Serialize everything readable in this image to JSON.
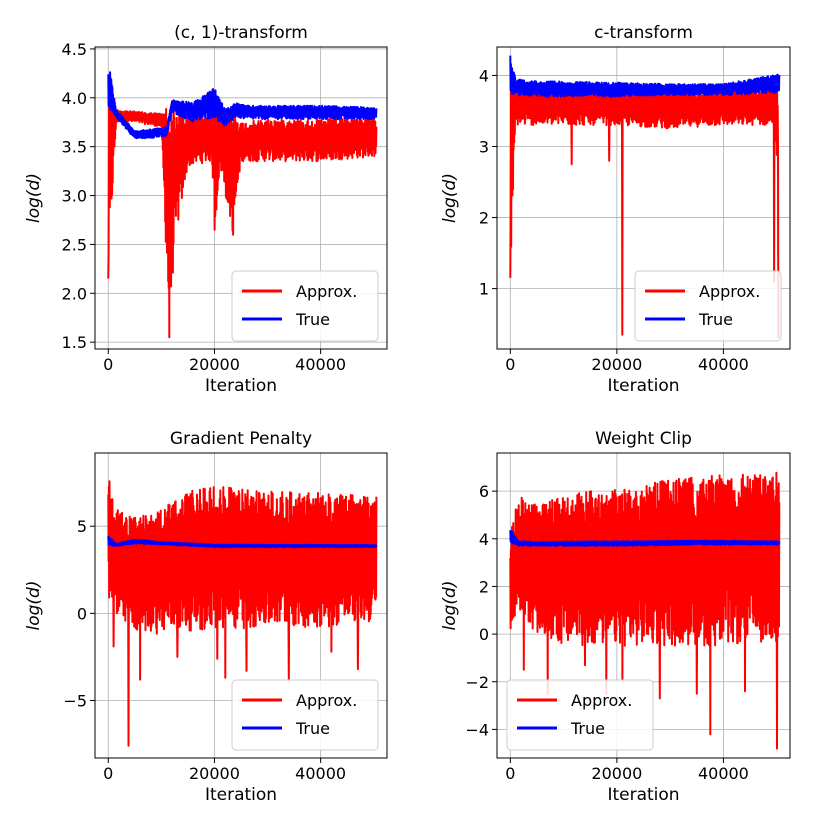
{
  "colors": {
    "approx": "#ff0000",
    "true": "#0000ff"
  },
  "chart_data": [
    {
      "type": "line",
      "title": "(c, 1)-transform",
      "xlabel": "Iteration",
      "ylabel": "log(d)",
      "xlim": [
        -2500,
        52500
      ],
      "ylim": [
        1.43,
        4.52
      ],
      "xticks": [
        0,
        20000,
        40000
      ],
      "xtick_labels": [
        "0",
        "20000",
        "40000"
      ],
      "yticks": [
        1.5,
        2.0,
        2.5,
        3.0,
        3.5,
        4.0,
        4.5
      ],
      "ytick_labels": [
        "1.5",
        "2.0",
        "2.5",
        "3.0",
        "3.5",
        "4.0",
        "4.5"
      ],
      "grid": true,
      "legend": {
        "position": "bottom-right",
        "entries": [
          "Approx.",
          "True"
        ]
      },
      "series": [
        {
          "name": "Approx.",
          "color": "#ff0000",
          "band": [
            [
              0,
              2.15,
              4.38
            ],
            [
              1500,
              3.75,
              3.88
            ],
            [
              5000,
              3.75,
              3.86
            ],
            [
              10000,
              3.7,
              3.84
            ],
            [
              11500,
              1.55,
              4.0
            ],
            [
              12500,
              2.5,
              3.9
            ],
            [
              15000,
              3.3,
              3.85
            ],
            [
              19500,
              3.35,
              3.88
            ],
            [
              20200,
              2.7,
              3.95
            ],
            [
              21000,
              3.3,
              3.9
            ],
            [
              23500,
              2.6,
              3.9
            ],
            [
              25000,
              3.35,
              3.75
            ],
            [
              30000,
              3.35,
              3.78
            ],
            [
              40000,
              3.35,
              3.78
            ],
            [
              50500,
              3.4,
              3.8
            ]
          ],
          "dips": [
            [
              0,
              2.15
            ],
            [
              11500,
              1.55
            ],
            [
              20000,
              2.65
            ],
            [
              23500,
              2.6
            ]
          ]
        },
        {
          "name": "True",
          "color": "#0000ff",
          "band": [
            [
              0,
              3.8,
              4.38
            ],
            [
              1500,
              3.8,
              3.88
            ],
            [
              5000,
              3.58,
              3.66
            ],
            [
              11000,
              3.6,
              3.7
            ],
            [
              12000,
              3.85,
              3.98
            ],
            [
              16000,
              3.75,
              3.95
            ],
            [
              20000,
              3.8,
              4.1
            ],
            [
              22000,
              3.7,
              3.88
            ],
            [
              24000,
              3.8,
              3.95
            ],
            [
              26000,
              3.78,
              3.92
            ],
            [
              40000,
              3.78,
              3.92
            ],
            [
              50500,
              3.78,
              3.9
            ]
          ]
        }
      ]
    },
    {
      "type": "line",
      "title": "c-transform",
      "xlabel": "Iteration",
      "ylabel": "log(d)",
      "xlim": [
        -2500,
        52500
      ],
      "ylim": [
        0.15,
        4.4
      ],
      "xticks": [
        0,
        20000,
        40000
      ],
      "xtick_labels": [
        "0",
        "20000",
        "40000"
      ],
      "yticks": [
        1,
        2,
        3,
        4
      ],
      "ytick_labels": [
        "1",
        "2",
        "3",
        "4"
      ],
      "grid": true,
      "legend": {
        "position": "bottom-right",
        "entries": [
          "Approx.",
          "True"
        ]
      },
      "series": [
        {
          "name": "Approx.",
          "color": "#ff0000",
          "band": [
            [
              0,
              1.15,
              4.1
            ],
            [
              1000,
              3.3,
              3.85
            ],
            [
              10000,
              3.3,
              3.85
            ],
            [
              20000,
              3.3,
              3.8
            ],
            [
              30000,
              3.25,
              3.82
            ],
            [
              40000,
              3.3,
              3.8
            ],
            [
              49500,
              3.3,
              3.82
            ],
            [
              50300,
              2.5,
              3.85
            ]
          ],
          "dips": [
            [
              0,
              1.15
            ],
            [
              11500,
              2.75
            ],
            [
              18500,
              2.8
            ],
            [
              21000,
              0.35
            ],
            [
              49500,
              1.1
            ],
            [
              50300,
              0.3
            ]
          ]
        },
        {
          "name": "True",
          "color": "#0000ff",
          "band": [
            [
              0,
              3.75,
              4.28
            ],
            [
              1000,
              3.72,
              3.95
            ],
            [
              5000,
              3.7,
              3.92
            ],
            [
              20000,
              3.7,
              3.9
            ],
            [
              30000,
              3.72,
              3.88
            ],
            [
              40000,
              3.72,
              3.88
            ],
            [
              50500,
              3.75,
              4.02
            ]
          ]
        }
      ]
    },
    {
      "type": "line",
      "title": "Gradient Penalty",
      "xlabel": "Iteration",
      "ylabel": "log(d)",
      "xlim": [
        -2500,
        52500
      ],
      "ylim": [
        -8.3,
        9.2
      ],
      "xticks": [
        0,
        20000,
        40000
      ],
      "xtick_labels": [
        "0",
        "20000",
        "40000"
      ],
      "yticks": [
        -5,
        0,
        5
      ],
      "ytick_labels": [
        "−5",
        "0",
        "5"
      ],
      "grid": true,
      "legend": {
        "position": "bottom-right",
        "entries": [
          "Approx.",
          "True"
        ]
      },
      "series": [
        {
          "name": "Approx.",
          "color": "#ff0000",
          "band": [
            [
              0,
              1.0,
              8.5
            ],
            [
              1500,
              -0.5,
              6.0
            ],
            [
              5000,
              -1.0,
              5.5
            ],
            [
              10000,
              -1.2,
              6.0
            ],
            [
              15000,
              -1.0,
              7.0
            ],
            [
              20000,
              -1.0,
              7.3
            ],
            [
              30000,
              -0.8,
              7.0
            ],
            [
              40000,
              -0.8,
              6.9
            ],
            [
              50500,
              -0.5,
              6.8
            ]
          ],
          "dips": [
            [
              1000,
              -1.9
            ],
            [
              3800,
              -7.6
            ],
            [
              6000,
              -3.8
            ],
            [
              13000,
              -2.5
            ],
            [
              20500,
              -2.6
            ],
            [
              22000,
              -3.7
            ],
            [
              26000,
              -3.3
            ],
            [
              34000,
              -3.8
            ],
            [
              42000,
              -2.2
            ],
            [
              47000,
              -3.2
            ]
          ]
        },
        {
          "name": "True",
          "color": "#0000ff",
          "band": [
            [
              0,
              3.9,
              4.5
            ],
            [
              1500,
              3.85,
              4.0
            ],
            [
              5000,
              4.0,
              4.25
            ],
            [
              10000,
              3.95,
              4.1
            ],
            [
              20000,
              3.8,
              3.95
            ],
            [
              50500,
              3.8,
              3.92
            ]
          ]
        }
      ]
    },
    {
      "type": "line",
      "title": "Weight Clip",
      "xlabel": "Iteration",
      "ylabel": "log(d)",
      "xlim": [
        -2500,
        52500
      ],
      "ylim": [
        -5.2,
        7.6
      ],
      "xticks": [
        0,
        20000,
        40000
      ],
      "xtick_labels": [
        "0",
        "20000",
        "40000"
      ],
      "yticks": [
        -4,
        -2,
        0,
        2,
        4,
        6
      ],
      "ytick_labels": [
        "−4",
        "−2",
        "0",
        "2",
        "4",
        "6"
      ],
      "grid": true,
      "legend": {
        "position": "bottom-left",
        "entries": [
          "Approx.",
          "True"
        ]
      },
      "series": [
        {
          "name": "Approx.",
          "color": "#ff0000",
          "band": [
            [
              0,
              -0.3,
              4.3
            ],
            [
              1500,
              1.0,
              5.8
            ],
            [
              5000,
              0.0,
              5.4
            ],
            [
              10000,
              -0.5,
              5.8
            ],
            [
              20000,
              -0.5,
              6.2
            ],
            [
              30000,
              -0.5,
              6.5
            ],
            [
              40000,
              -0.5,
              6.7
            ],
            [
              50500,
              -0.3,
              6.8
            ]
          ],
          "dips": [
            [
              2500,
              -1.5
            ],
            [
              7000,
              -2.5
            ],
            [
              14000,
              -1.3
            ],
            [
              18000,
              -2.5
            ],
            [
              21000,
              -1.9
            ],
            [
              28000,
              -2.7
            ],
            [
              35000,
              -2.5
            ],
            [
              37500,
              -4.2
            ],
            [
              44000,
              -2.4
            ],
            [
              50000,
              -4.8
            ]
          ]
        },
        {
          "name": "True",
          "color": "#0000ff",
          "band": [
            [
              0,
              3.8,
              4.45
            ],
            [
              1500,
              3.7,
              3.9
            ],
            [
              5000,
              3.7,
              3.88
            ],
            [
              20000,
              3.7,
              3.9
            ],
            [
              35000,
              3.75,
              3.92
            ],
            [
              50500,
              3.75,
              3.9
            ]
          ]
        }
      ]
    }
  ]
}
